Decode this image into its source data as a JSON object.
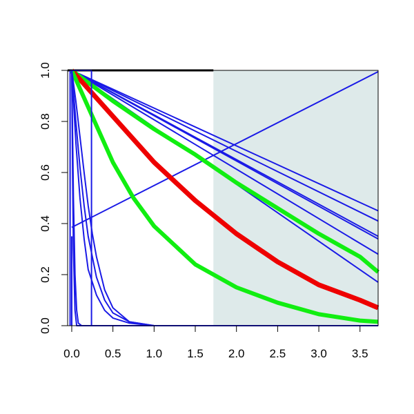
{
  "chart_data": {
    "type": "line",
    "title": "",
    "xlabel": "",
    "ylabel": "",
    "xlim": [
      -0.05,
      3.72
    ],
    "ylim": [
      0,
      1
    ],
    "x_ticks": [
      "0.0",
      "0.5",
      "1.0",
      "1.5",
      "2.0",
      "2.5",
      "3.0",
      "3.5"
    ],
    "y_ticks": [
      "0.0",
      "0.2",
      "0.4",
      "0.6",
      "0.8",
      "1.0"
    ],
    "shaded_region": {
      "x_from": 1.72,
      "x_to": 3.72,
      "color": "#deeaea"
    },
    "top_reference_line": {
      "y": 1.0,
      "x_from": -0.05,
      "x_to": 1.72,
      "color": "#000000"
    },
    "colors": {
      "blue": "#1a1ae6",
      "red": "#ee0000",
      "green": "#11ee11"
    },
    "series": [
      {
        "color": "blue",
        "width": 2,
        "points": [
          [
            0.0,
            0.385
          ],
          [
            3.72,
            0.995
          ]
        ]
      },
      {
        "color": "blue",
        "width": 2,
        "points": [
          [
            0.0,
            1.0
          ],
          [
            3.72,
            0.45
          ]
        ]
      },
      {
        "color": "blue",
        "width": 2,
        "points": [
          [
            0.0,
            1.0
          ],
          [
            3.72,
            0.41
          ]
        ]
      },
      {
        "color": "blue",
        "width": 2,
        "points": [
          [
            0.0,
            1.0
          ],
          [
            3.72,
            0.35
          ]
        ]
      },
      {
        "color": "blue",
        "width": 2,
        "points": [
          [
            0.0,
            1.0
          ],
          [
            3.72,
            0.34
          ]
        ]
      },
      {
        "color": "blue",
        "width": 2,
        "points": [
          [
            0.0,
            1.0
          ],
          [
            3.72,
            0.28
          ]
        ]
      },
      {
        "color": "blue",
        "width": 2,
        "points": [
          [
            0.0,
            1.0
          ],
          [
            3.72,
            0.17
          ]
        ]
      },
      {
        "color": "green",
        "width": 6,
        "points": [
          [
            0.0,
            1.0
          ],
          [
            0.5,
            0.88
          ],
          [
            1.0,
            0.77
          ],
          [
            1.5,
            0.67
          ],
          [
            2.0,
            0.56
          ],
          [
            2.5,
            0.46
          ],
          [
            3.0,
            0.36
          ],
          [
            3.5,
            0.27
          ],
          [
            3.72,
            0.21
          ]
        ]
      },
      {
        "color": "red",
        "width": 7,
        "points": [
          [
            0.0,
            1.0
          ],
          [
            0.25,
            0.91
          ],
          [
            0.5,
            0.82
          ],
          [
            1.0,
            0.64
          ],
          [
            1.5,
            0.49
          ],
          [
            2.0,
            0.36
          ],
          [
            2.5,
            0.25
          ],
          [
            3.0,
            0.16
          ],
          [
            3.5,
            0.1
          ],
          [
            3.72,
            0.07
          ]
        ]
      },
      {
        "color": "green",
        "width": 6,
        "points": [
          [
            0.0,
            1.0
          ],
          [
            0.25,
            0.82
          ],
          [
            0.5,
            0.64
          ],
          [
            0.75,
            0.5
          ],
          [
            1.0,
            0.39
          ],
          [
            1.5,
            0.24
          ],
          [
            2.0,
            0.15
          ],
          [
            2.5,
            0.09
          ],
          [
            3.0,
            0.045
          ],
          [
            3.5,
            0.02
          ],
          [
            3.72,
            0.015
          ]
        ]
      },
      {
        "color": "blue",
        "width": 2,
        "points": [
          [
            0.0,
            1.0
          ],
          [
            0.05,
            0.72
          ],
          [
            0.1,
            0.5
          ],
          [
            0.15,
            0.34
          ],
          [
            0.2,
            0.22
          ],
          [
            0.3,
            0.12
          ],
          [
            0.4,
            0.06
          ],
          [
            0.5,
            0.03
          ],
          [
            0.7,
            0.01
          ],
          [
            1.0,
            0.0
          ],
          [
            3.72,
            0.0
          ]
        ]
      },
      {
        "color": "blue",
        "width": 2,
        "points": [
          [
            0.0,
            1.0
          ],
          [
            0.05,
            0.8
          ],
          [
            0.1,
            0.62
          ],
          [
            0.15,
            0.47
          ],
          [
            0.2,
            0.35
          ],
          [
            0.3,
            0.19
          ],
          [
            0.4,
            0.1
          ],
          [
            0.5,
            0.05
          ],
          [
            0.7,
            0.015
          ],
          [
            1.0,
            0.0
          ],
          [
            3.72,
            0.0
          ]
        ]
      },
      {
        "color": "blue",
        "width": 2,
        "points": [
          [
            0.0,
            1.0
          ],
          [
            0.05,
            0.88
          ],
          [
            0.1,
            0.74
          ],
          [
            0.15,
            0.6
          ],
          [
            0.2,
            0.47
          ],
          [
            0.25,
            0.36
          ],
          [
            0.3,
            0.27
          ],
          [
            0.4,
            0.14
          ],
          [
            0.5,
            0.07
          ],
          [
            0.7,
            0.015
          ],
          [
            1.0,
            0.0
          ],
          [
            3.72,
            0.0
          ]
        ]
      },
      {
        "color": "blue",
        "width": 2,
        "points": [
          [
            0.0,
            1.0
          ],
          [
            0.02,
            0.5
          ],
          [
            0.04,
            0.2
          ],
          [
            0.06,
            0.06
          ],
          [
            0.08,
            0.01
          ],
          [
            0.12,
            0.0
          ],
          [
            3.72,
            0.0
          ]
        ]
      },
      {
        "color": "blue",
        "width": 2,
        "points": [
          [
            0.0,
            1.0
          ],
          [
            0.01,
            0.6
          ],
          [
            0.02,
            0.3
          ],
          [
            0.04,
            0.06
          ],
          [
            0.06,
            0.0
          ],
          [
            3.72,
            0.0
          ]
        ]
      },
      {
        "color": "blue",
        "width": 2,
        "points": [
          [
            -0.02,
            1.0
          ],
          [
            0.24,
            1.0
          ],
          [
            0.24,
            0.0
          ],
          [
            3.72,
            0.0
          ]
        ]
      },
      {
        "color": "blue",
        "width": 2,
        "points": [
          [
            -0.02,
            1.0
          ],
          [
            -0.02,
            0.0
          ]
        ]
      },
      {
        "color": "blue",
        "width": 2,
        "points": [
          [
            0.0,
            0.35
          ],
          [
            0.0,
            0.0
          ]
        ]
      }
    ]
  }
}
